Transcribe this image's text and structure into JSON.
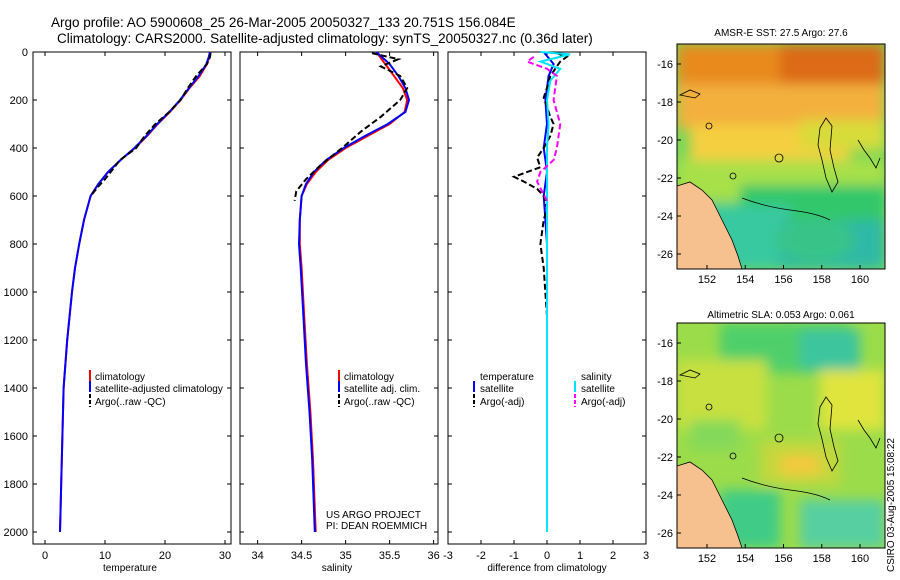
{
  "title": {
    "line1": "Argo profile: AO 5900608_25 26-Mar-2005 20050327_133 20.751S 156.084E",
    "line2": "Climatology: CARS2000. Satellite-adjusted climatology: synTS_20050327.nc (0.36d later)"
  },
  "credits": {
    "line1": "US ARGO PROJECT",
    "line2": "PI: DEAN ROEMMICH"
  },
  "timestamp": "CSIRO 03-Aug-2005 15:08:22",
  "colors": {
    "climatology": "#ff0000",
    "satellite": "#0000ff",
    "argo": "#000000",
    "salinity_sat": "#00e5ff",
    "salinity_argo": "#ff00ff",
    "land": "#f7c08f"
  },
  "chart_data": [
    {
      "type": "line",
      "name": "temperature-panel",
      "xlabel": "temperature",
      "ylabel": "",
      "xlim": [
        -2,
        31
      ],
      "ylim": [
        2050,
        0
      ],
      "xticks": [
        0,
        10,
        20,
        30
      ],
      "yticks": [
        0,
        200,
        400,
        600,
        800,
        1000,
        1200,
        1400,
        1600,
        1800,
        2000
      ],
      "legend": [
        "climatology",
        "satellite-adjusted climatology",
        "Argo(..raw -QC)"
      ],
      "series": [
        {
          "name": "climatology",
          "color": "#ff0000",
          "dash": "",
          "x": [
            27.6,
            27.4,
            27.0,
            25.8,
            24.1,
            22.6,
            20.8,
            18.8,
            17.0,
            15.0,
            12.6,
            10.5,
            8.9,
            7.6,
            6.5,
            5.7,
            5.0,
            4.5,
            4.1,
            3.7,
            3.4,
            3.1,
            2.9,
            2.7,
            2.5
          ],
          "y": [
            0,
            20,
            50,
            100,
            150,
            200,
            250,
            300,
            350,
            400,
            450,
            500,
            550,
            600,
            700,
            800,
            900,
            1000,
            1100,
            1200,
            1300,
            1400,
            1600,
            1800,
            2000
          ]
        },
        {
          "name": "satellite",
          "color": "#0000ff",
          "dash": "",
          "x": [
            27.5,
            27.3,
            26.9,
            25.6,
            24.0,
            22.5,
            20.7,
            18.7,
            16.9,
            14.9,
            12.6,
            10.5,
            8.9,
            7.6,
            6.5,
            5.7,
            5.0,
            4.5,
            4.1,
            3.7,
            3.4,
            3.1,
            2.9,
            2.7,
            2.5
          ],
          "y": [
            0,
            20,
            50,
            100,
            150,
            200,
            250,
            300,
            350,
            400,
            450,
            500,
            550,
            600,
            700,
            800,
            900,
            1000,
            1100,
            1200,
            1300,
            1400,
            1600,
            1800,
            2000
          ]
        },
        {
          "name": "argo",
          "color": "#000000",
          "dash": "6 3",
          "x": [
            27.6,
            27.5,
            27.0,
            25.2,
            23.8,
            22.6,
            20.7,
            18.4,
            16.6,
            15.2,
            12.5,
            10.0,
            8.9,
            7.6
          ],
          "y": [
            5,
            20,
            50,
            100,
            150,
            200,
            250,
            300,
            350,
            400,
            450,
            530,
            560,
            600
          ]
        }
      ]
    },
    {
      "type": "line",
      "name": "salinity-panel",
      "xlabel": "salinity",
      "ylabel": "",
      "xlim": [
        33.8,
        36.05
      ],
      "ylim": [
        2050,
        0
      ],
      "xticks": [
        34,
        34.5,
        35,
        35.5,
        36
      ],
      "xticklabels": [
        "34",
        "34.5",
        "35",
        "35.5",
        "36"
      ],
      "legend": [
        "climatology",
        "satellite adj. clim.",
        "Argo(..raw -QC)"
      ],
      "series": [
        {
          "name": "climatology",
          "color": "#ff0000",
          "dash": "",
          "x": [
            35.35,
            35.45,
            35.55,
            35.65,
            35.7,
            35.67,
            35.5,
            35.25,
            35.0,
            34.8,
            34.66,
            34.56,
            34.5,
            34.48,
            34.48,
            34.5,
            34.53,
            34.56,
            34.6,
            34.63,
            34.66
          ],
          "y": [
            0,
            50,
            100,
            150,
            200,
            250,
            300,
            350,
            400,
            450,
            500,
            550,
            600,
            700,
            800,
            900,
            1100,
            1300,
            1500,
            1700,
            2000
          ]
        },
        {
          "name": "satellite",
          "color": "#0000ff",
          "dash": "",
          "x": [
            35.35,
            35.5,
            35.6,
            35.68,
            35.72,
            35.68,
            35.48,
            35.22,
            34.98,
            34.78,
            34.64,
            34.55,
            34.5,
            34.48,
            34.47,
            34.49,
            34.52,
            34.55,
            34.59,
            34.62,
            34.65
          ],
          "y": [
            0,
            50,
            100,
            150,
            200,
            250,
            300,
            350,
            400,
            450,
            500,
            550,
            600,
            700,
            800,
            900,
            1100,
            1300,
            1500,
            1700,
            2000
          ]
        },
        {
          "name": "argo",
          "color": "#000000",
          "dash": "6 3",
          "x": [
            35.3,
            35.6,
            35.4,
            35.62,
            35.7,
            35.62,
            35.4,
            35.18,
            34.96,
            34.72,
            34.55,
            34.44,
            34.42
          ],
          "y": [
            5,
            30,
            60,
            100,
            150,
            200,
            270,
            330,
            400,
            470,
            530,
            580,
            620
          ]
        }
      ]
    },
    {
      "type": "line",
      "name": "difference-panel",
      "xlabel": "difference from climatology",
      "ylabel": "",
      "xlim": [
        -3,
        3
      ],
      "ylim": [
        2050,
        0
      ],
      "xticks": [
        -3,
        -2,
        -1,
        0,
        1,
        2,
        3
      ],
      "legend_left": [
        "temperature",
        "satellite",
        "Argo(-adj)"
      ],
      "legend_right": [
        "salinity",
        "satellite",
        "Argo(-adj)"
      ],
      "series": [
        {
          "name": "temperature satellite",
          "color": "#0000ff",
          "dash": "",
          "x": [
            -0.1,
            0.2,
            0.05,
            -0.05,
            0.0,
            -0.1,
            -0.05,
            0.0,
            -0.1,
            -0.05,
            0.0,
            0.0,
            0.0,
            0.0,
            0.0
          ],
          "y": [
            0,
            50,
            100,
            200,
            300,
            400,
            450,
            500,
            600,
            700,
            800,
            1000,
            1400,
            1800,
            2000
          ]
        },
        {
          "name": "temperature argo",
          "color": "#000000",
          "dash": "6 3",
          "x": [
            0.3,
            0.6,
            0.4,
            0.3,
            0.1,
            0.0,
            -0.1,
            0.0,
            0.1,
            0.2,
            0.1,
            -0.1,
            -0.3,
            -0.2,
            -1.0,
            -0.7,
            -0.3,
            -0.1,
            0.0,
            -0.1,
            -0.2,
            -0.1,
            0.0
          ],
          "y": [
            5,
            20,
            40,
            60,
            100,
            150,
            190,
            230,
            270,
            300,
            350,
            400,
            440,
            480,
            520,
            540,
            570,
            600,
            650,
            700,
            800,
            900,
            1100
          ]
        },
        {
          "name": "salinity satellite",
          "color": "#00e5ff",
          "dash": "",
          "x": [
            -0.2,
            0.7,
            -0.2,
            0.4,
            0.1,
            0.0,
            0.05,
            0.0,
            0.0,
            0.0,
            0.0,
            0.0,
            0.0,
            0.0
          ],
          "y": [
            0,
            10,
            40,
            70,
            120,
            200,
            300,
            400,
            500,
            600,
            800,
            1200,
            1600,
            2000
          ]
        },
        {
          "name": "salinity argo",
          "color": "#ff00ff",
          "dash": "6 3",
          "x": [
            -0.4,
            -0.6,
            0.0,
            0.3,
            0.2,
            0.4,
            0.3,
            0.2,
            -0.2,
            -0.3,
            -0.15,
            0.0
          ],
          "y": [
            20,
            40,
            70,
            100,
            200,
            300,
            400,
            450,
            500,
            540,
            580,
            620
          ]
        }
      ]
    }
  ],
  "maps": {
    "sst": {
      "title": "AMSR-E SST: 27.5 Argo: 27.6",
      "yticks": [
        "-16",
        "-18",
        "-20",
        "-22",
        "-24",
        "-26"
      ],
      "xticks": [
        "152",
        "154",
        "156",
        "158",
        "160"
      ]
    },
    "sla": {
      "title": "Altimetric SLA: 0.053 Argo: 0.061",
      "yticks": [
        "-16",
        "-18",
        "-20",
        "-22",
        "-24",
        "-26"
      ],
      "xticks": [
        "152",
        "154",
        "156",
        "158",
        "160"
      ]
    }
  }
}
